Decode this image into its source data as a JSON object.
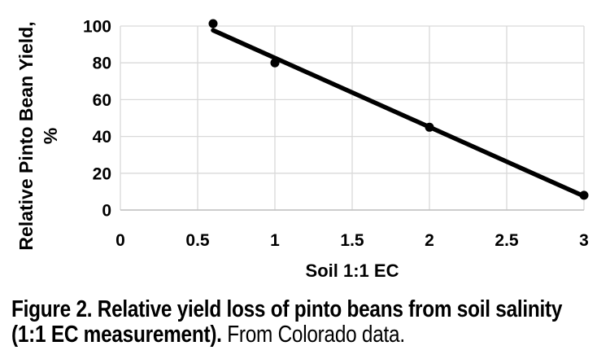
{
  "figure": {
    "caption_bold": "Figure 2. Relative yield loss of pinto beans from soil salinity (1:1 EC measurement).",
    "caption_regular": "From Colorado data."
  },
  "chart_data": {
    "type": "scatter",
    "title": "",
    "xlabel": "Soil 1:1 EC",
    "ylabel": "Relative Pinto Bean Yield, %",
    "ylabel_lines": [
      "Relative Pinto Bean Yield,",
      "%"
    ],
    "x": [
      0.6,
      1,
      2,
      3
    ],
    "y": [
      100,
      80,
      45,
      8
    ],
    "trendline": {
      "type": "linear",
      "x_start": 0.6,
      "y_start": 97.7,
      "x_end": 3.0,
      "y_end": 7.5
    },
    "xlim": [
      0,
      3
    ],
    "ylim": [
      0,
      100
    ],
    "x_tick_labels": [
      "0",
      "0.5",
      "1",
      "1.5",
      "2",
      "2.5",
      "3"
    ],
    "y_tick_labels": [
      "0",
      "20",
      "40",
      "60",
      "80",
      "100"
    ],
    "grid": true,
    "legend": false,
    "colors": {
      "series": "#000000",
      "marker": "#000000",
      "gridline": "#d9d9d9",
      "axis_line": "#bfbfbf",
      "text": "#000000",
      "background": "#ffffff"
    }
  }
}
